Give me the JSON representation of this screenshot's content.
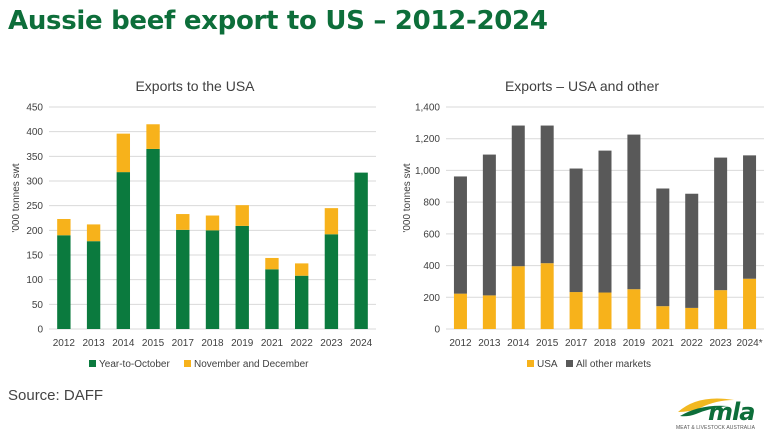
{
  "page": {
    "title": "Aussie beef export to US – 2012-2024",
    "source": "Source: DAFF",
    "logo": {
      "brand": "mla",
      "tagline": "MEAT & LIVESTOCK AUSTRALIA"
    }
  },
  "colors": {
    "title_green": "#0d6e3a",
    "bar_green": "#0b7a3e",
    "bar_yellow": "#f7b21b",
    "bar_grey": "#595959",
    "grid": "#d9d9d9",
    "logo_yellow": "#f2b820"
  },
  "chart_data": [
    {
      "type": "bar",
      "stacked": true,
      "title": "Exports to the USA",
      "ylabel": "'000 tonnes swt",
      "xlabel": "",
      "categories": [
        "2012",
        "2013",
        "2014",
        "2015",
        "2017",
        "2018",
        "2019",
        "2021",
        "2022",
        "2023",
        "2024"
      ],
      "series": [
        {
          "name": "Year-to-October",
          "color": "#0b7a3e",
          "values": [
            190,
            178,
            318,
            365,
            201,
            200,
            209,
            121,
            108,
            192,
            317
          ]
        },
        {
          "name": "November and December",
          "color": "#f7b21b",
          "values": [
            33,
            34,
            78,
            50,
            32,
            30,
            42,
            23,
            25,
            53,
            0
          ]
        }
      ],
      "ylim": [
        0,
        450
      ],
      "yticks": [
        "0",
        "50",
        "100",
        "150",
        "200",
        "250",
        "300",
        "350",
        "400",
        "450"
      ],
      "grid": true,
      "legend": "bottom"
    },
    {
      "type": "bar",
      "stacked": true,
      "title": "Exports – USA and other",
      "ylabel": "'000 tonnes swt",
      "xlabel": "",
      "categories": [
        "2012",
        "2013",
        "2014",
        "2015",
        "2017",
        "2018",
        "2019",
        "2021",
        "2022",
        "2023",
        "2024*"
      ],
      "series": [
        {
          "name": "USA",
          "color": "#f7b21b",
          "values": [
            223,
            212,
            396,
            415,
            233,
            230,
            251,
            144,
            133,
            245,
            317
          ]
        },
        {
          "name": "All other markets",
          "color": "#595959",
          "values": [
            739,
            888,
            887,
            868,
            779,
            895,
            975,
            742,
            720,
            836,
            778
          ]
        }
      ],
      "ylim": [
        0,
        1400
      ],
      "yticks": [
        "0",
        "200",
        "400",
        "600",
        "800",
        "1,000",
        "1,200",
        "1,400"
      ],
      "grid": true,
      "legend": "bottom"
    }
  ]
}
